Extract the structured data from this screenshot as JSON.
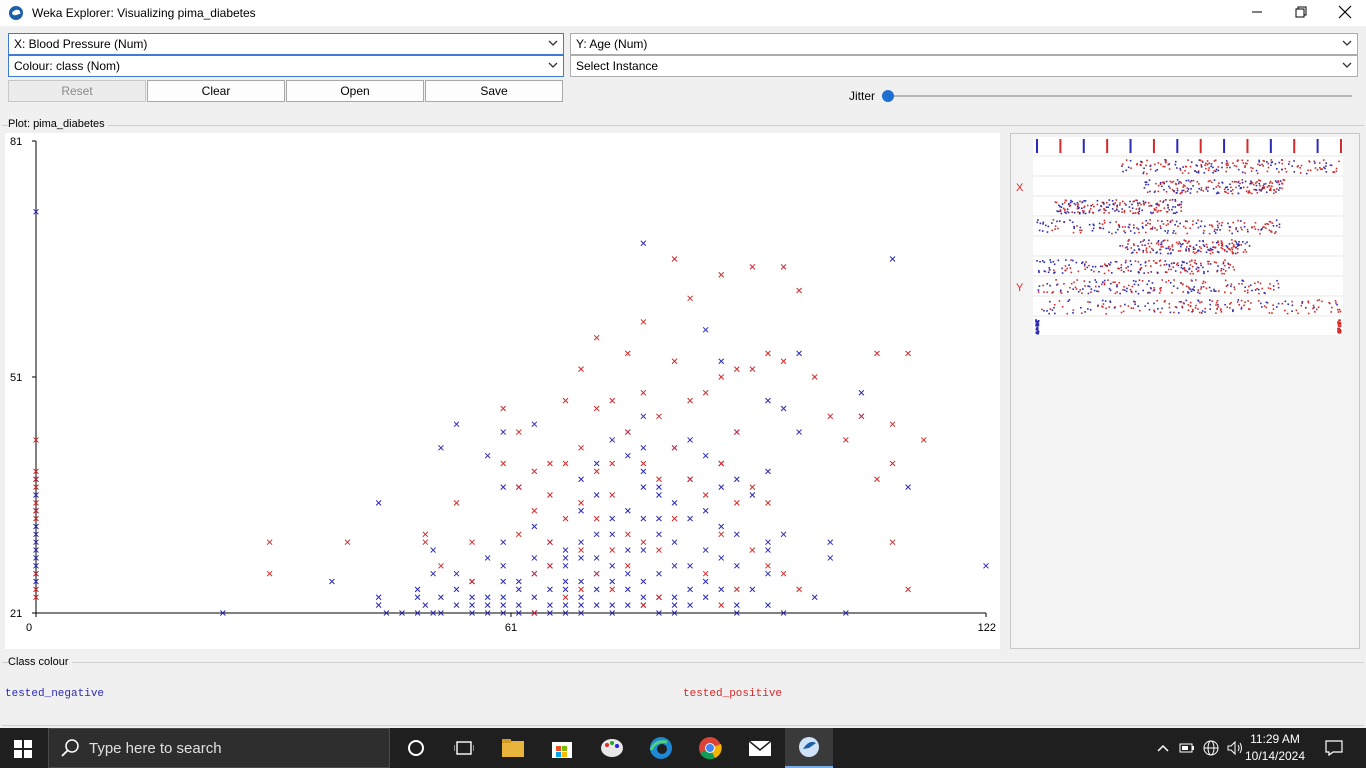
{
  "window": {
    "title": "Weka Explorer: Visualizing pima_diabetes"
  },
  "controls": {
    "x_axis": "X: Blood Pressure (Num)",
    "y_axis": "Y: Age (Num)",
    "colour": "Colour: class (Nom)",
    "instance": "Select Instance",
    "reset_label": "Reset",
    "clear_label": "Clear",
    "open_label": "Open",
    "save_label": "Save",
    "jitter_label": "Jitter",
    "jitter_value": 0
  },
  "plot": {
    "label": "Plot: pima_diabetes"
  },
  "matrix": {
    "x_marker": "X",
    "y_marker": "Y"
  },
  "legend": {
    "title": "Class colour",
    "classes": [
      {
        "name": "tested_negative",
        "color": "#2a2ab5"
      },
      {
        "name": "tested_positive",
        "color": "#d42a2a"
      }
    ]
  },
  "chart_data": {
    "type": "scatter",
    "xlabel": "Blood Pressure",
    "ylabel": "Age",
    "xlim": [
      0,
      122
    ],
    "ylim": [
      21,
      81
    ],
    "x_ticks": [
      "0",
      "61",
      "122"
    ],
    "y_ticks": [
      "21",
      "51",
      "81"
    ],
    "marker": "x",
    "series": [
      {
        "name": "tested_negative",
        "color": "#2a2ab5",
        "points": [
          [
            0,
            72
          ],
          [
            0,
            25
          ],
          [
            0,
            26
          ],
          [
            0,
            27
          ],
          [
            0,
            28
          ],
          [
            0,
            29
          ],
          [
            0,
            30
          ],
          [
            0,
            31
          ],
          [
            0,
            32
          ],
          [
            0,
            34
          ],
          [
            0,
            36
          ],
          [
            0,
            38
          ],
          [
            24,
            21
          ],
          [
            38,
            25
          ],
          [
            44,
            35
          ],
          [
            44,
            22
          ],
          [
            44,
            23
          ],
          [
            45,
            21
          ],
          [
            47,
            21
          ],
          [
            49,
            21
          ],
          [
            49,
            23
          ],
          [
            49,
            24
          ],
          [
            50,
            22
          ],
          [
            51,
            29
          ],
          [
            51,
            26
          ],
          [
            51,
            21
          ],
          [
            52,
            42
          ],
          [
            52,
            21
          ],
          [
            52,
            23
          ],
          [
            54,
            45
          ],
          [
            54,
            22
          ],
          [
            54,
            24
          ],
          [
            54,
            26
          ],
          [
            56,
            25
          ],
          [
            56,
            23
          ],
          [
            56,
            22
          ],
          [
            56,
            21
          ],
          [
            58,
            41
          ],
          [
            58,
            23
          ],
          [
            58,
            28
          ],
          [
            58,
            21
          ],
          [
            58,
            22
          ],
          [
            60,
            44
          ],
          [
            60,
            37
          ],
          [
            60,
            22
          ],
          [
            60,
            27
          ],
          [
            60,
            25
          ],
          [
            60,
            30
          ],
          [
            60,
            21
          ],
          [
            60,
            23
          ],
          [
            62,
            37
          ],
          [
            62,
            22
          ],
          [
            62,
            25
          ],
          [
            62,
            21
          ],
          [
            62,
            24
          ],
          [
            64,
            45
          ],
          [
            64,
            26
          ],
          [
            64,
            21
          ],
          [
            64,
            23
          ],
          [
            64,
            28
          ],
          [
            64,
            32
          ],
          [
            66,
            27
          ],
          [
            66,
            21
          ],
          [
            66,
            22
          ],
          [
            66,
            24
          ],
          [
            66,
            30
          ],
          [
            68,
            28
          ],
          [
            68,
            25
          ],
          [
            68,
            21
          ],
          [
            68,
            22
          ],
          [
            68,
            24
          ],
          [
            68,
            27
          ],
          [
            68,
            29
          ],
          [
            70,
            38
          ],
          [
            70,
            21
          ],
          [
            70,
            22
          ],
          [
            70,
            23
          ],
          [
            70,
            25
          ],
          [
            70,
            28
          ],
          [
            70,
            30
          ],
          [
            70,
            34
          ],
          [
            72,
            36
          ],
          [
            72,
            22
          ],
          [
            72,
            24
          ],
          [
            72,
            26
          ],
          [
            72,
            28
          ],
          [
            72,
            31
          ],
          [
            72,
            40
          ],
          [
            74,
            43
          ],
          [
            74,
            21
          ],
          [
            74,
            22
          ],
          [
            74,
            25
          ],
          [
            74,
            27
          ],
          [
            74,
            31
          ],
          [
            74,
            33
          ],
          [
            76,
            44
          ],
          [
            76,
            22
          ],
          [
            76,
            24
          ],
          [
            76,
            26
          ],
          [
            76,
            29
          ],
          [
            76,
            34
          ],
          [
            76,
            41
          ],
          [
            78,
            39
          ],
          [
            78,
            22
          ],
          [
            78,
            23
          ],
          [
            78,
            25
          ],
          [
            78,
            29
          ],
          [
            78,
            33
          ],
          [
            78,
            37
          ],
          [
            78,
            42
          ],
          [
            78,
            46
          ],
          [
            78,
            68
          ],
          [
            80,
            36
          ],
          [
            80,
            21
          ],
          [
            80,
            23
          ],
          [
            80,
            26
          ],
          [
            80,
            31
          ],
          [
            80,
            33
          ],
          [
            80,
            37
          ],
          [
            82,
            42
          ],
          [
            82,
            21
          ],
          [
            82,
            22
          ],
          [
            82,
            23
          ],
          [
            82,
            27
          ],
          [
            82,
            30
          ],
          [
            82,
            35
          ],
          [
            84,
            38
          ],
          [
            84,
            22
          ],
          [
            84,
            24
          ],
          [
            84,
            27
          ],
          [
            84,
            33
          ],
          [
            84,
            43
          ],
          [
            86,
            41
          ],
          [
            86,
            23
          ],
          [
            86,
            25
          ],
          [
            86,
            29
          ],
          [
            86,
            34
          ],
          [
            86,
            57
          ],
          [
            88,
            40
          ],
          [
            88,
            24
          ],
          [
            88,
            28
          ],
          [
            88,
            32
          ],
          [
            88,
            37
          ],
          [
            88,
            53
          ],
          [
            90,
            38
          ],
          [
            90,
            21
          ],
          [
            90,
            22
          ],
          [
            90,
            27
          ],
          [
            90,
            31
          ],
          [
            90,
            44
          ],
          [
            92,
            36
          ],
          [
            92,
            24
          ],
          [
            94,
            30
          ],
          [
            94,
            22
          ],
          [
            94,
            26
          ],
          [
            94,
            29
          ],
          [
            94,
            39
          ],
          [
            94,
            48
          ],
          [
            96,
            47
          ],
          [
            96,
            21
          ],
          [
            96,
            31
          ],
          [
            98,
            44
          ],
          [
            98,
            54
          ],
          [
            100,
            23
          ],
          [
            102,
            28
          ],
          [
            102,
            30
          ],
          [
            104,
            21
          ],
          [
            106,
            49
          ],
          [
            106,
            46
          ],
          [
            110,
            66
          ],
          [
            112,
            37
          ],
          [
            122,
            27
          ]
        ]
      },
      {
        "name": "tested_positive",
        "color": "#d42a2a",
        "points": [
          [
            0,
            23
          ],
          [
            0,
            24
          ],
          [
            0,
            26
          ],
          [
            0,
            33
          ],
          [
            0,
            34
          ],
          [
            0,
            35
          ],
          [
            0,
            37
          ],
          [
            0,
            38
          ],
          [
            0,
            39
          ],
          [
            0,
            43
          ],
          [
            30,
            30
          ],
          [
            30,
            26
          ],
          [
            40,
            30
          ],
          [
            50,
            31
          ],
          [
            50,
            30
          ],
          [
            52,
            27
          ],
          [
            54,
            35
          ],
          [
            56,
            30
          ],
          [
            56,
            25
          ],
          [
            60,
            47
          ],
          [
            60,
            40
          ],
          [
            62,
            44
          ],
          [
            62,
            37
          ],
          [
            62,
            31
          ],
          [
            64,
            39
          ],
          [
            64,
            34
          ],
          [
            64,
            26
          ],
          [
            64,
            21
          ],
          [
            66,
            40
          ],
          [
            66,
            36
          ],
          [
            66,
            30
          ],
          [
            66,
            27
          ],
          [
            68,
            48
          ],
          [
            68,
            40
          ],
          [
            68,
            33
          ],
          [
            68,
            23
          ],
          [
            70,
            52
          ],
          [
            70,
            42
          ],
          [
            70,
            35
          ],
          [
            70,
            29
          ],
          [
            70,
            24
          ],
          [
            72,
            56
          ],
          [
            72,
            47
          ],
          [
            72,
            39
          ],
          [
            72,
            33
          ],
          [
            72,
            26
          ],
          [
            74,
            48
          ],
          [
            74,
            40
          ],
          [
            74,
            36
          ],
          [
            74,
            29
          ],
          [
            74,
            24
          ],
          [
            76,
            54
          ],
          [
            76,
            44
          ],
          [
            76,
            31
          ],
          [
            76,
            27
          ],
          [
            78,
            58
          ],
          [
            78,
            49
          ],
          [
            78,
            40
          ],
          [
            78,
            30
          ],
          [
            78,
            22
          ],
          [
            80,
            46
          ],
          [
            80,
            38
          ],
          [
            80,
            29
          ],
          [
            80,
            23
          ],
          [
            82,
            66
          ],
          [
            82,
            53
          ],
          [
            82,
            42
          ],
          [
            82,
            33
          ],
          [
            84,
            61
          ],
          [
            84,
            48
          ],
          [
            84,
            38
          ],
          [
            86,
            49
          ],
          [
            86,
            36
          ],
          [
            86,
            26
          ],
          [
            88,
            64
          ],
          [
            88,
            51
          ],
          [
            88,
            40
          ],
          [
            88,
            31
          ],
          [
            88,
            22
          ],
          [
            90,
            52
          ],
          [
            90,
            44
          ],
          [
            90,
            35
          ],
          [
            90,
            24
          ],
          [
            92,
            65
          ],
          [
            92,
            52
          ],
          [
            92,
            37
          ],
          [
            92,
            29
          ],
          [
            94,
            54
          ],
          [
            94,
            35
          ],
          [
            94,
            27
          ],
          [
            96,
            65
          ],
          [
            96,
            53
          ],
          [
            96,
            26
          ],
          [
            98,
            62
          ],
          [
            98,
            24
          ],
          [
            100,
            51
          ],
          [
            102,
            46
          ],
          [
            104,
            43
          ],
          [
            106,
            46
          ],
          [
            108,
            54
          ],
          [
            108,
            38
          ],
          [
            110,
            40
          ],
          [
            110,
            45
          ],
          [
            110,
            30
          ],
          [
            112,
            54
          ],
          [
            112,
            24
          ],
          [
            114,
            43
          ]
        ]
      }
    ]
  }
}
